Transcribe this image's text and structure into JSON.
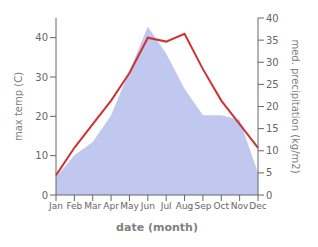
{
  "chart_data": {
    "type": "line",
    "xlabel": "date (month)",
    "ylabel": "max temp (C)",
    "y2label": "med. precipitation (kg/m2)",
    "categories": [
      "Jan",
      "Feb",
      "Mar",
      "Apr",
      "May",
      "Jun",
      "Jul",
      "Aug",
      "Sep",
      "Oct",
      "Nov",
      "Dec"
    ],
    "series": [
      {
        "type": "area",
        "axis": "y2",
        "color": "#c0c8f0",
        "values": [
          4,
          9,
          12,
          18,
          28,
          38,
          32,
          24,
          18,
          18,
          17,
          5
        ]
      },
      {
        "type": "line",
        "color": "#cc3333",
        "values": [
          5,
          12,
          18,
          24,
          31,
          40,
          39,
          41,
          32,
          24,
          18,
          12
        ]
      }
    ],
    "ylim": [
      0,
      45
    ],
    "yticks": [
      0,
      10,
      20,
      30,
      40
    ],
    "y2lim": [
      0,
      40
    ],
    "y2ticks": [
      0,
      5,
      10,
      15,
      20,
      25,
      30,
      35,
      40
    ],
    "grid": false
  }
}
